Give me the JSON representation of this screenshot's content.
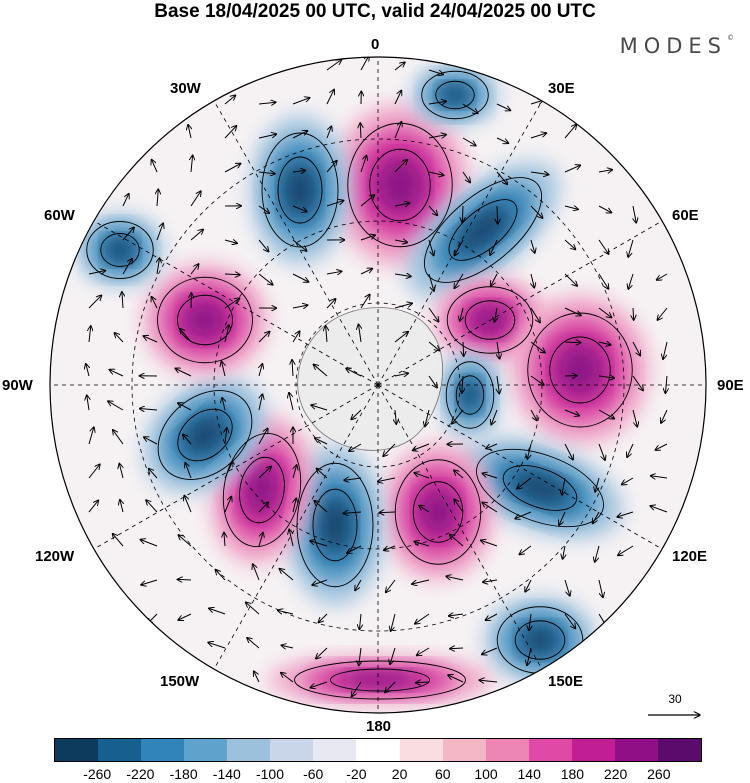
{
  "title": "Base 18/04/2025 00 UTC, valid 24/04/2025 00 UTC",
  "brand": "MODES",
  "brand_mark": "©",
  "longitude_labels": {
    "0": "0",
    "30E": "30E",
    "60E": "60E",
    "90E": "90E",
    "120E": "120E",
    "150E": "150E",
    "180": "180",
    "150W": "150W",
    "120W": "120W",
    "90W": "90W",
    "60W": "60W",
    "30W": "30W"
  },
  "colorbar": {
    "labels": [
      "-260",
      "-220",
      "-180",
      "-140",
      "-100",
      "-60",
      "-20",
      "20",
      "60",
      "100",
      "140",
      "180",
      "220",
      "260"
    ],
    "colors": [
      "#0d3b5e",
      "#16608f",
      "#3184b8",
      "#5fa3cc",
      "#9cc1dd",
      "#c9d6ea",
      "#e8e8f3",
      "#ffffff",
      "#f9dde0",
      "#f4b7c6",
      "#ee86b5",
      "#e04aa6",
      "#c21e93",
      "#900e86",
      "#5b0b6b"
    ]
  },
  "vector_reference": "30",
  "map": {
    "pattern_colors": {
      "pos_strong": "#8e1386",
      "pos_mid": "#d3399f",
      "pos_light": "#f0a8c8",
      "neg_strong": "#14476f",
      "neg_mid": "#3a88ba",
      "neg_light": "#a8c7e0",
      "land": "#ececec",
      "grid": "#000000"
    }
  }
}
